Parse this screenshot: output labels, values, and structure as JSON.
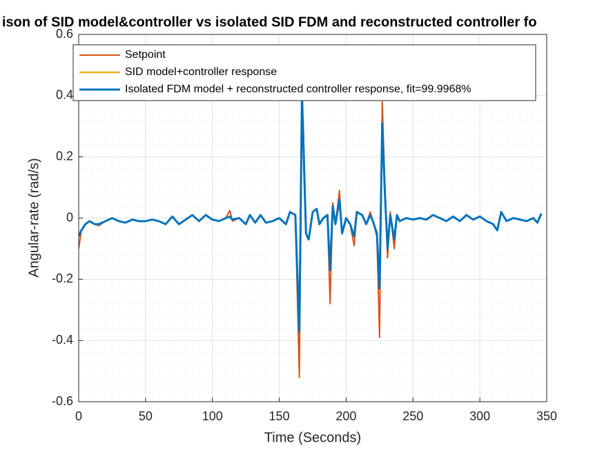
{
  "chart_data": {
    "type": "line",
    "title": "ison of SID model&controller vs isolated SID FDM and reconstructed controller fo",
    "x_label": "Time (Seconds)",
    "y_label": "Angular-rate (rad/s)",
    "x": [
      0,
      2,
      5,
      8,
      12,
      15,
      20,
      25,
      30,
      35,
      40,
      45,
      50,
      55,
      60,
      65,
      70,
      75,
      80,
      85,
      90,
      95,
      100,
      105,
      110,
      113,
      115,
      120,
      125,
      128,
      132,
      136,
      140,
      145,
      150,
      155,
      158,
      162,
      165,
      167,
      168,
      170,
      172,
      175,
      178,
      180,
      183,
      186,
      188,
      190,
      192,
      195,
      197,
      200,
      203,
      206,
      208,
      212,
      215,
      218,
      220,
      223,
      225,
      227,
      229,
      231,
      233,
      236,
      238,
      240,
      245,
      250,
      255,
      260,
      265,
      270,
      275,
      280,
      285,
      290,
      295,
      300,
      305,
      310,
      313,
      316,
      320,
      325,
      330,
      335,
      340,
      343,
      346
    ],
    "series": [
      {
        "name": "Setpoint",
        "color": "#d95319",
        "values": [
          -0.1,
          -0.04,
          -0.02,
          -0.01,
          -0.02,
          -0.025,
          -0.01,
          0,
          -0.01,
          -0.015,
          -0.005,
          -0.01,
          -0.01,
          -0.005,
          -0.01,
          -0.02,
          0.005,
          -0.02,
          -0.005,
          0.01,
          -0.01,
          0.01,
          -0.005,
          -0.01,
          0,
          0.025,
          -0.01,
          0,
          -0.02,
          0.01,
          -0.015,
          0.01,
          -0.015,
          -0.01,
          0,
          -0.02,
          0.02,
          0.01,
          -0.52,
          0.37,
          0.3,
          -0.05,
          -0.07,
          0.02,
          0.03,
          -0.02,
          0,
          0.01,
          -0.28,
          0.05,
          -0.02,
          0.09,
          -0.05,
          0,
          -0.02,
          -0.09,
          0.02,
          0.01,
          -0.02,
          0.02,
          -0.01,
          -0.06,
          -0.39,
          0.38,
          0.1,
          -0.13,
          0.02,
          -0.1,
          0.01,
          -0.01,
          0,
          -0.005,
          0,
          -0.005,
          0.01,
          0,
          -0.01,
          0.005,
          -0.01,
          0.01,
          -0.005,
          0.005,
          -0.01,
          -0.02,
          -0.04,
          0.02,
          -0.01,
          0,
          -0.005,
          -0.01,
          0,
          -0.015,
          0.015
        ]
      },
      {
        "name": "SID model+controller response",
        "color": "#edb120",
        "values": [
          -0.06,
          -0.04,
          -0.02,
          -0.01,
          -0.02,
          -0.02,
          -0.01,
          0,
          -0.01,
          -0.015,
          -0.005,
          -0.01,
          -0.01,
          -0.005,
          -0.01,
          -0.02,
          0.005,
          -0.02,
          -0.005,
          0.01,
          -0.01,
          0.01,
          -0.005,
          -0.01,
          0,
          0.005,
          -0.005,
          0,
          -0.02,
          0.01,
          -0.015,
          0.01,
          -0.015,
          -0.01,
          0,
          -0.02,
          0.02,
          0.01,
          -0.37,
          0.41,
          0.25,
          -0.05,
          -0.07,
          0.02,
          0.03,
          -0.02,
          0,
          0.01,
          -0.17,
          0.04,
          -0.02,
          0.06,
          -0.05,
          0,
          -0.02,
          -0.06,
          0.02,
          0.01,
          -0.02,
          0.01,
          -0.01,
          -0.05,
          -0.23,
          0.31,
          0.08,
          -0.1,
          0.01,
          -0.07,
          0.01,
          -0.01,
          0,
          -0.005,
          0,
          -0.005,
          0.01,
          0,
          -0.01,
          0.005,
          -0.01,
          0.01,
          -0.005,
          0.005,
          -0.01,
          -0.02,
          -0.04,
          0.02,
          -0.01,
          0,
          -0.005,
          -0.01,
          0,
          -0.015,
          0.015
        ]
      },
      {
        "name": "Isolated FDM model + reconstructed controller response, fit=99.9968%",
        "color": "#0072bd",
        "values": [
          -0.06,
          -0.04,
          -0.02,
          -0.01,
          -0.02,
          -0.02,
          -0.01,
          0,
          -0.01,
          -0.015,
          -0.005,
          -0.01,
          -0.01,
          -0.005,
          -0.01,
          -0.02,
          0.005,
          -0.02,
          -0.005,
          0.01,
          -0.01,
          0.01,
          -0.005,
          -0.01,
          0,
          0.005,
          -0.005,
          0,
          -0.02,
          0.01,
          -0.015,
          0.01,
          -0.015,
          -0.01,
          0,
          -0.02,
          0.02,
          0.01,
          -0.37,
          0.41,
          0.25,
          -0.05,
          -0.07,
          0.02,
          0.03,
          -0.02,
          0,
          0.01,
          -0.17,
          0.04,
          -0.02,
          0.06,
          -0.05,
          0,
          -0.02,
          -0.06,
          0.02,
          0.01,
          -0.02,
          0.01,
          -0.01,
          -0.05,
          -0.23,
          0.31,
          0.08,
          -0.1,
          0.01,
          -0.07,
          0.01,
          -0.01,
          0,
          -0.005,
          0,
          -0.005,
          0.01,
          0,
          -0.01,
          0.005,
          -0.01,
          0.01,
          -0.005,
          0.005,
          -0.01,
          -0.02,
          -0.04,
          0.02,
          -0.01,
          0,
          -0.005,
          -0.01,
          0,
          -0.015,
          0.015
        ]
      }
    ],
    "xlim": [
      0,
      350
    ],
    "xticks": [
      0,
      50,
      100,
      150,
      200,
      250,
      300,
      350
    ],
    "ylim": [
      -0.6,
      0.6
    ],
    "yticks": [
      -0.6,
      -0.4,
      -0.2,
      0,
      0.2,
      0.4,
      0.6
    ],
    "grid": true,
    "minor_grid": true,
    "legend": "northwest"
  }
}
